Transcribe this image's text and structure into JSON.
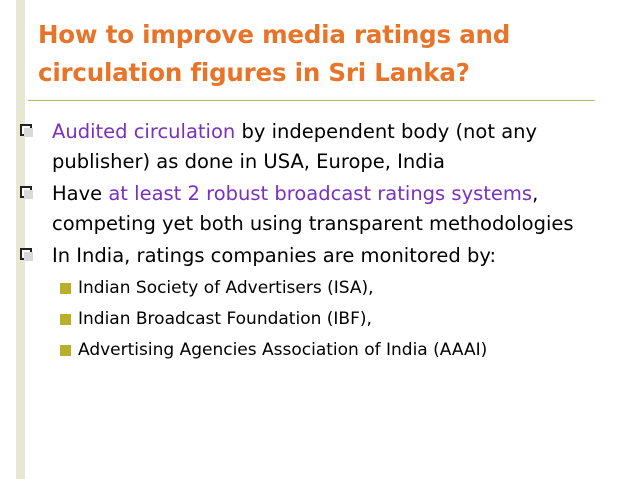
{
  "slide": {
    "title": "How to improve media ratings and circulation figures in Sri Lanka?",
    "bullets": [
      {
        "highlight": "Audited circulation",
        "text": " by independent body (not any publisher) as done in USA, Europe, India"
      },
      {
        "prefix": "Have ",
        "highlight": "at least 2 robust broadcast ratings systems",
        "text": ", competing yet both using transparent methodologies"
      },
      {
        "text": "In India, ratings companies are monitored by:"
      }
    ],
    "sub_bullets": [
      "Indian Society of Advertisers (ISA),",
      "Indian Broadcast Foundation (IBF),",
      "Advertising Agencies Association of India (AAAI)"
    ],
    "colors": {
      "title": "#e8742a",
      "highlight": "#7a2fbf",
      "sub_bullet_marker": "#b9b02a",
      "rule": "#c4b65a"
    }
  }
}
